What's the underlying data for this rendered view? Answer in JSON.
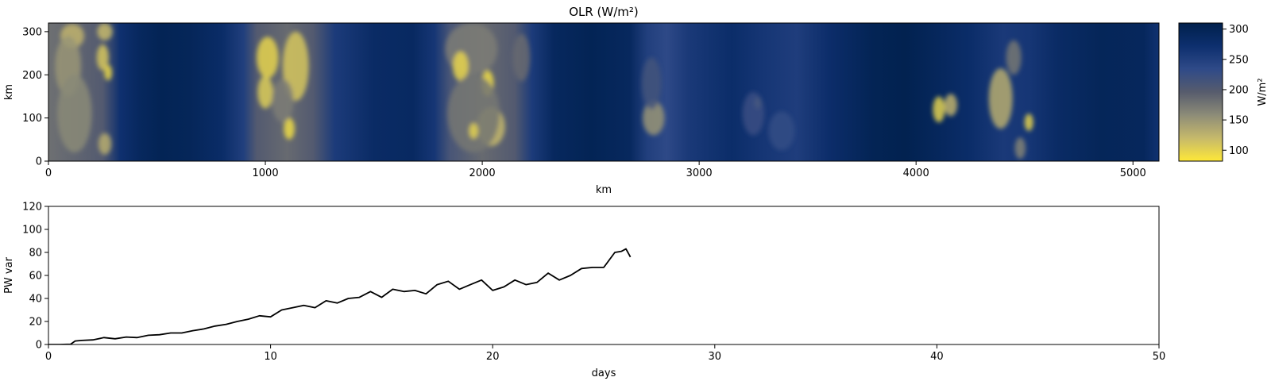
{
  "chart_data": [
    {
      "type": "heatmap",
      "title": "OLR (W/m²)",
      "xlabel": "km",
      "ylabel": "km",
      "xlim": [
        0,
        5120
      ],
      "ylim": [
        0,
        320
      ],
      "xticks": [
        0,
        1000,
        2000,
        3000,
        4000,
        5000
      ],
      "yticks": [
        0,
        100,
        200,
        300
      ],
      "colorbar": {
        "label": "W/m²",
        "range": [
          82,
          310
        ],
        "ticks": [
          100,
          150,
          200,
          250,
          300
        ],
        "colors": [
          "#fee838",
          "#c6b96b",
          "#8d8c78",
          "#575c6d",
          "#2f4a88",
          "#0d2f6e",
          "#00204c"
        ]
      },
      "clear_sky_olr_profile": {
        "x_km": [
          0,
          250,
          330,
          420,
          520,
          650,
          800,
          900,
          960,
          1100,
          1220,
          1320,
          1500,
          1680,
          1780,
          1850,
          2000,
          2150,
          2230,
          2330,
          2500,
          2680,
          2760,
          2850,
          2950,
          3150,
          3300,
          3450,
          3600,
          3800,
          3950,
          4100,
          4250,
          4400,
          4520,
          4650,
          4850,
          5050,
          5120
        ],
        "olr": [
          180,
          200,
          270,
          290,
          300,
          296,
          280,
          250,
          200,
          185,
          200,
          255,
          282,
          286,
          262,
          210,
          185,
          200,
          255,
          290,
          300,
          290,
          250,
          235,
          258,
          278,
          262,
          252,
          276,
          300,
          305,
          292,
          278,
          258,
          262,
          282,
          296,
          292,
          268
        ]
      },
      "cold_clouds": [
        {
          "x": 110,
          "y": 290,
          "rx": 55,
          "ry": 28,
          "olr": 125
        },
        {
          "x": 90,
          "y": 220,
          "rx": 60,
          "ry": 70,
          "olr": 150
        },
        {
          "x": 120,
          "y": 110,
          "rx": 80,
          "ry": 90,
          "olr": 160
        },
        {
          "x": 260,
          "y": 300,
          "rx": 35,
          "ry": 20,
          "olr": 120
        },
        {
          "x": 250,
          "y": 240,
          "rx": 28,
          "ry": 30,
          "olr": 110
        },
        {
          "x": 275,
          "y": 205,
          "rx": 18,
          "ry": 18,
          "olr": 95
        },
        {
          "x": 260,
          "y": 40,
          "rx": 30,
          "ry": 25,
          "olr": 130
        },
        {
          "x": 1010,
          "y": 240,
          "rx": 50,
          "ry": 48,
          "olr": 98
        },
        {
          "x": 1000,
          "y": 160,
          "rx": 35,
          "ry": 38,
          "olr": 105
        },
        {
          "x": 1110,
          "y": 75,
          "rx": 25,
          "ry": 25,
          "olr": 92
        },
        {
          "x": 1140,
          "y": 220,
          "rx": 60,
          "ry": 80,
          "olr": 110
        },
        {
          "x": 1080,
          "y": 140,
          "rx": 50,
          "ry": 50,
          "olr": 170
        },
        {
          "x": 1950,
          "y": 260,
          "rx": 120,
          "ry": 60,
          "olr": 170
        },
        {
          "x": 1900,
          "y": 220,
          "rx": 36,
          "ry": 34,
          "olr": 98
        },
        {
          "x": 2025,
          "y": 180,
          "rx": 28,
          "ry": 30,
          "olr": 92
        },
        {
          "x": 2040,
          "y": 80,
          "rx": 65,
          "ry": 45,
          "olr": 120
        },
        {
          "x": 1960,
          "y": 110,
          "rx": 120,
          "ry": 90,
          "olr": 175
        },
        {
          "x": 2180,
          "y": 240,
          "rx": 40,
          "ry": 55,
          "olr": 185
        },
        {
          "x": 1960,
          "y": 70,
          "rx": 20,
          "ry": 18,
          "olr": 100
        },
        {
          "x": 2790,
          "y": 100,
          "rx": 50,
          "ry": 40,
          "olr": 150
        },
        {
          "x": 2780,
          "y": 180,
          "rx": 45,
          "ry": 60,
          "olr": 215
        },
        {
          "x": 3270,
          "y": 135,
          "rx": 15,
          "ry": 14,
          "olr": 140
        },
        {
          "x": 3250,
          "y": 110,
          "rx": 50,
          "ry": 50,
          "olr": 225
        },
        {
          "x": 3380,
          "y": 70,
          "rx": 60,
          "ry": 45,
          "olr": 230
        },
        {
          "x": 4105,
          "y": 120,
          "rx": 28,
          "ry": 30,
          "olr": 100
        },
        {
          "x": 4160,
          "y": 130,
          "rx": 30,
          "ry": 26,
          "olr": 125
        },
        {
          "x": 4390,
          "y": 145,
          "rx": 55,
          "ry": 70,
          "olr": 130
        },
        {
          "x": 4520,
          "y": 90,
          "rx": 20,
          "ry": 20,
          "olr": 98
        },
        {
          "x": 4480,
          "y": 30,
          "rx": 25,
          "ry": 25,
          "olr": 165
        },
        {
          "x": 4450,
          "y": 240,
          "rx": 35,
          "ry": 40,
          "olr": 175
        }
      ]
    },
    {
      "type": "line",
      "title": "",
      "xlabel": "days",
      "ylabel": "PW var",
      "xlim": [
        0,
        50
      ],
      "ylim": [
        0,
        120
      ],
      "xticks": [
        0,
        10,
        20,
        30,
        40,
        50
      ],
      "yticks": [
        0,
        20,
        40,
        60,
        80,
        100,
        120
      ],
      "color": "#000000",
      "x": [
        0,
        0.5,
        1.0,
        1.2,
        1.5,
        2.0,
        2.5,
        3.0,
        3.5,
        4.0,
        4.5,
        5.0,
        5.5,
        6.0,
        6.5,
        7.0,
        7.5,
        8.0,
        8.5,
        9.0,
        9.5,
        10.0,
        10.5,
        11.0,
        11.5,
        12.0,
        12.5,
        13.0,
        13.5,
        14.0,
        14.5,
        15.0,
        15.5,
        16.0,
        16.5,
        17.0,
        17.5,
        18.0,
        18.5,
        19.0,
        19.5,
        20.0,
        20.5,
        21.0,
        21.5,
        22.0,
        22.5,
        23.0,
        23.5,
        24.0,
        24.5,
        25.0,
        25.5,
        25.8,
        26.0,
        26.2
      ],
      "y": [
        0,
        0,
        0.3,
        3,
        3.5,
        4,
        6,
        5,
        6.5,
        6,
        8,
        8.5,
        10,
        10,
        12,
        13.5,
        16,
        17.5,
        20,
        22,
        25,
        24,
        30,
        32,
        34,
        32,
        38,
        36,
        40,
        41,
        46,
        41,
        48,
        46,
        47,
        44,
        52,
        55,
        48,
        52,
        56,
        47,
        50,
        56,
        52,
        54,
        62,
        56,
        60,
        66,
        67,
        67,
        80,
        81,
        83,
        76
      ]
    }
  ]
}
